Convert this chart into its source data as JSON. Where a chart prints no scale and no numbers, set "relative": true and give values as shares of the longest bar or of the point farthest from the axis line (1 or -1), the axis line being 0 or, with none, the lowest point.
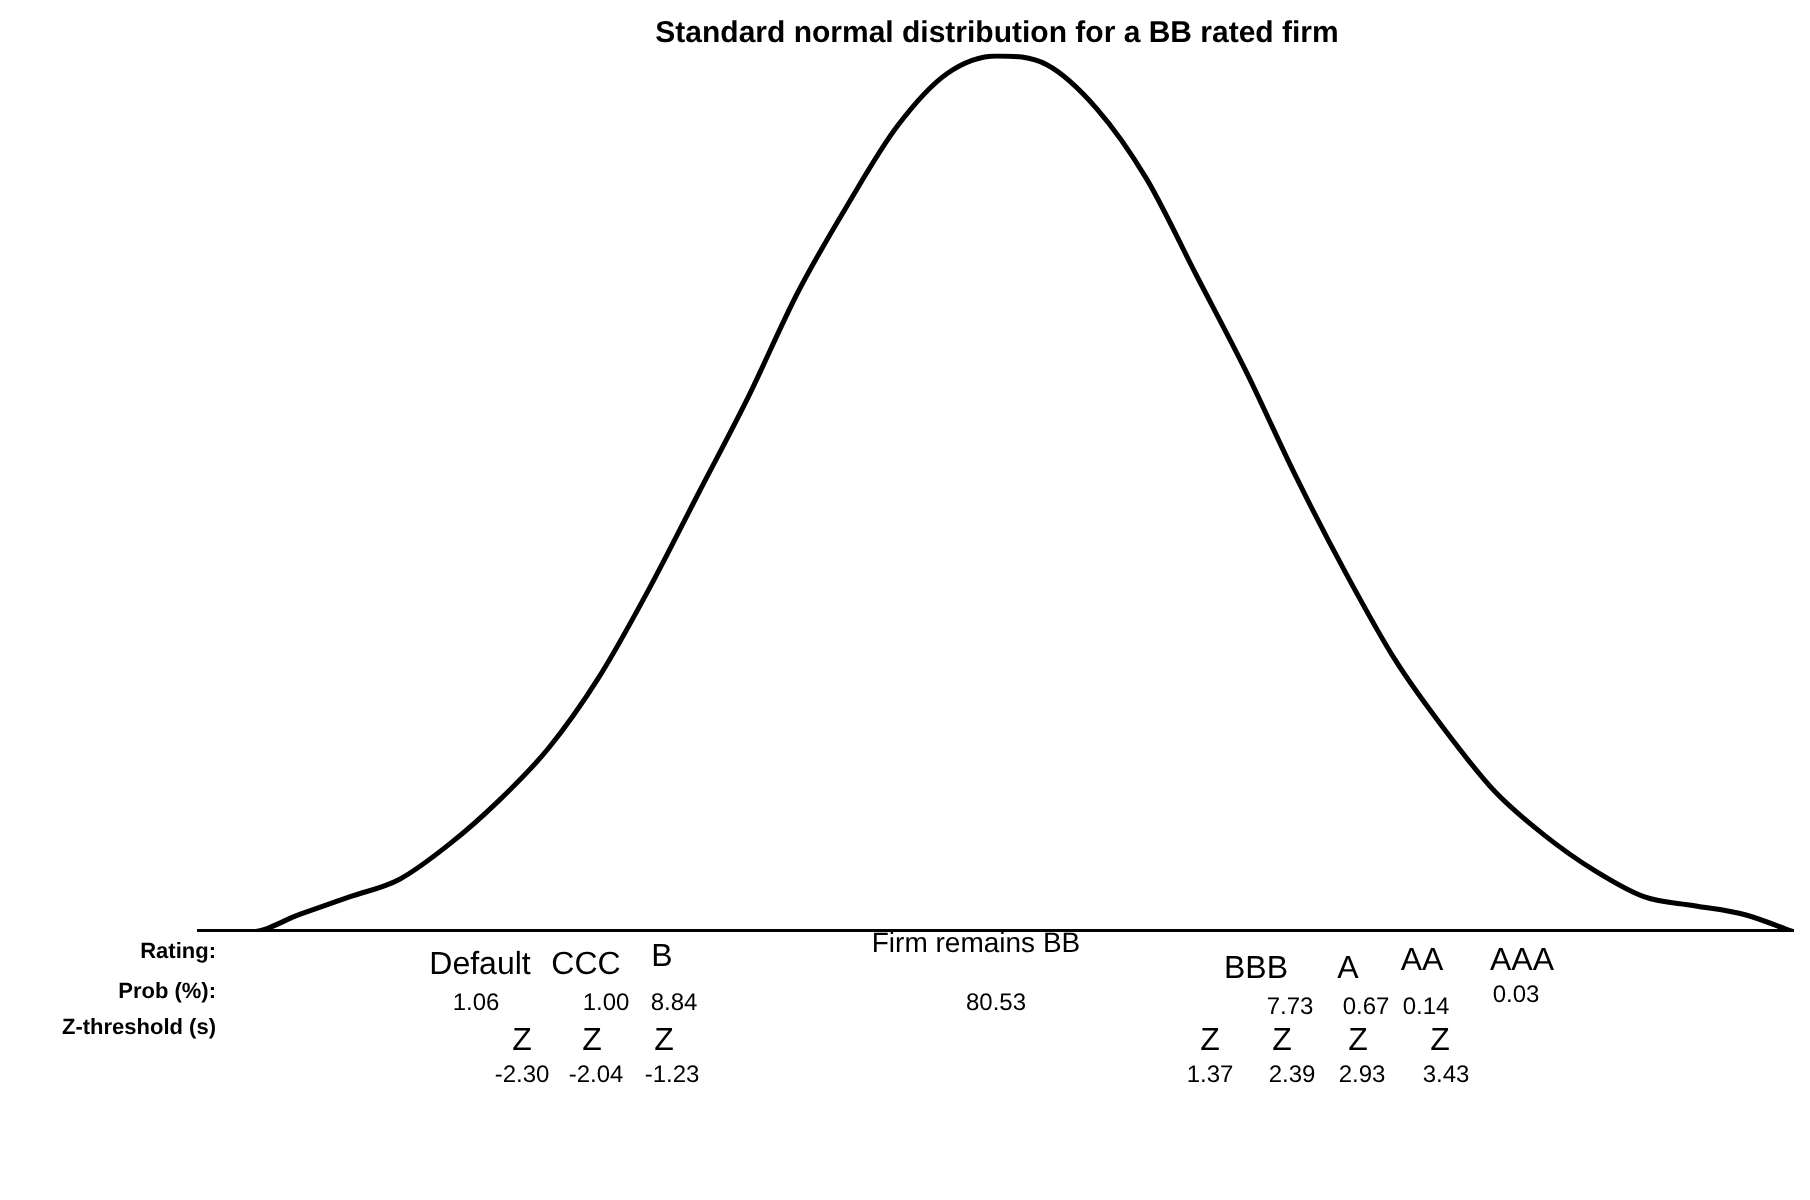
{
  "chart_data": {
    "type": "line",
    "title": "Standard normal distribution for a BB rated firm",
    "relative": true,
    "legend": false,
    "grid": false,
    "marker": "none",
    "tick_labels": false,
    "categories": [
      null,
      null,
      null,
      null,
      null,
      null,
      null,
      null,
      null,
      null,
      null,
      null,
      null,
      null,
      null,
      null,
      null,
      null,
      null,
      null,
      null,
      null,
      null,
      null,
      null,
      null,
      null,
      null,
      null,
      null,
      null,
      null,
      null
    ],
    "series": [
      {
        "color": "#000000",
        "values": [
          0,
          0,
          0.02,
          0.04,
          0.06,
          0.1,
          0.15,
          0.21,
          0.29,
          0.39,
          0.5,
          0.61,
          0.73,
          0.83,
          0.92,
          0.98,
          1,
          0.99,
          0.94,
          0.86,
          0.75,
          0.64,
          0.52,
          0.41,
          0.31,
          0.23,
          0.16,
          0.11,
          0.07,
          0.04,
          0.03,
          0.02,
          0
        ]
      }
    ],
    "annotations": [
      "Rating:",
      "Prob (%):",
      "Z-threshold (s)",
      "Default",
      "CCC",
      "B",
      "Firm remains BB",
      "BBB",
      "A",
      "AA",
      "AAA",
      "1.06",
      "1.00",
      "8.84",
      "80.53",
      "7.73",
      "0.67",
      "0.14",
      "0.03",
      "Z",
      "Z",
      "Z",
      "Z",
      "Z",
      "Z",
      "Z",
      "-2.30",
      "-2.04",
      "-1.23",
      "1.37",
      "2.39",
      "2.93",
      "3.43"
    ]
  }
}
